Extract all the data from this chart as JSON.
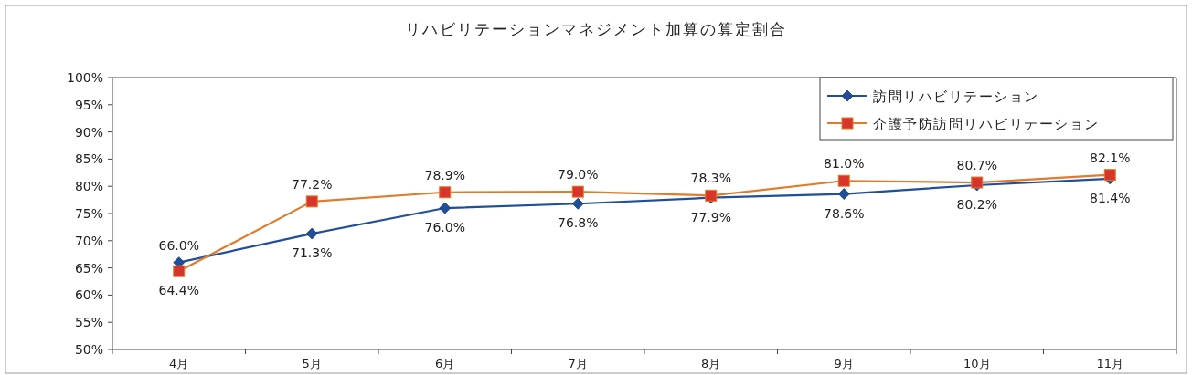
{
  "chart_data": {
    "type": "line",
    "title": "リハビリテーションマネジメント加算の算定割合",
    "categories": [
      "4月",
      "5月",
      "6月",
      "7月",
      "8月",
      "9月",
      "10月",
      "11月"
    ],
    "series": [
      {
        "name": "訪問リハビリテーション",
        "color": "#1f4e9a",
        "marker": "diamond",
        "values": [
          66.0,
          71.3,
          76.0,
          76.8,
          77.9,
          78.6,
          80.2,
          81.4
        ],
        "value_labels": [
          "66.0%",
          "71.3%",
          "76.0%",
          "76.8%",
          "77.9%",
          "78.6%",
          "80.2%",
          "81.4%"
        ]
      },
      {
        "name": "介護予防訪問リハビリテーション",
        "color": "#e07b2a",
        "marker": "square",
        "values": [
          64.4,
          77.2,
          78.9,
          79.0,
          78.3,
          81.0,
          80.7,
          82.1
        ],
        "value_labels": [
          "64.4%",
          "77.2%",
          "78.9%",
          "79.0%",
          "78.3%",
          "81.0%",
          "80.7%",
          "82.1%"
        ]
      }
    ],
    "ylim": [
      50,
      100
    ],
    "yticks": [
      {
        "value": 50,
        "label": "50%"
      },
      {
        "value": 55,
        "label": "55%"
      },
      {
        "value": 60,
        "label": "60%"
      },
      {
        "value": 65,
        "label": "65%"
      },
      {
        "value": 70,
        "label": "70%"
      },
      {
        "value": 75,
        "label": "75%"
      },
      {
        "value": 80,
        "label": "80%"
      },
      {
        "value": 85,
        "label": "85%"
      },
      {
        "value": 90,
        "label": "90%"
      },
      {
        "value": 95,
        "label": "95%"
      },
      {
        "value": 100,
        "label": "100%"
      }
    ],
    "legend": "top right",
    "grid": false,
    "line_style": "solid"
  }
}
